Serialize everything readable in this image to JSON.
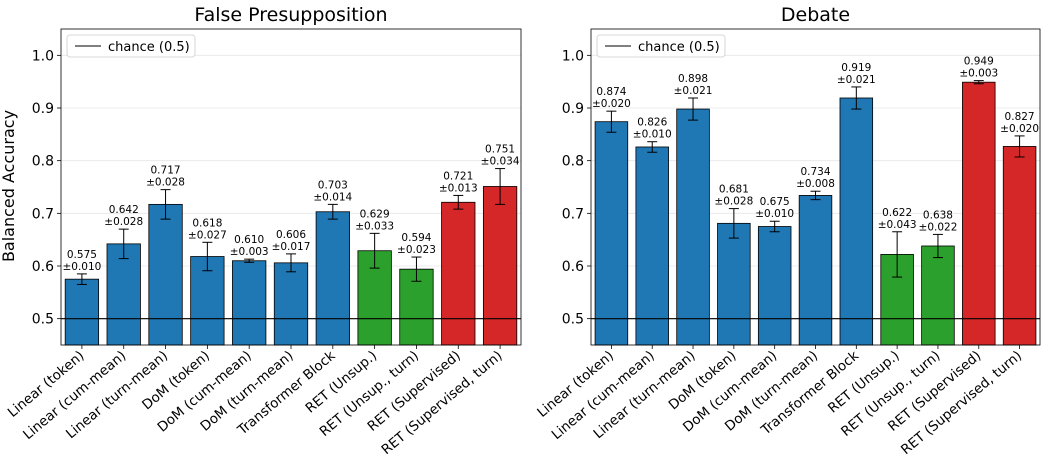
{
  "figure": {
    "ylabel": "Balanced Accuracy"
  },
  "chart_data": [
    {
      "type": "bar",
      "title": "False Presupposition",
      "xlabel": "",
      "ylabel": "Balanced Accuracy",
      "ylim": [
        0.45,
        1.05
      ],
      "yticks": [
        0.5,
        0.6,
        0.7,
        0.8,
        0.9,
        1.0
      ],
      "ytick_labels": [
        "0.5",
        "0.6",
        "0.7",
        "0.8",
        "0.9",
        "1.0"
      ],
      "grid": "horizontal",
      "legend_position": "top-left",
      "reference_line": {
        "y": 0.5,
        "label": "chance (0.5)"
      },
      "categories": [
        "Linear (token)",
        "Linear (cum-mean)",
        "Linear (turn-mean)",
        "DoM (token)",
        "DoM (cum-mean)",
        "DoM (turn-mean)",
        "Transformer Block",
        "RET (Unsup.)",
        "RET (Unsup., turn)",
        "RET (Supervised)",
        "RET (Supervised, turn)"
      ],
      "values": [
        0.575,
        0.642,
        0.717,
        0.618,
        0.61,
        0.606,
        0.703,
        0.629,
        0.594,
        0.721,
        0.751
      ],
      "errors": [
        0.01,
        0.028,
        0.028,
        0.027,
        0.003,
        0.017,
        0.014,
        0.033,
        0.023,
        0.013,
        0.034
      ],
      "value_labels": [
        "0.575",
        "0.642",
        "0.717",
        "0.618",
        "0.610",
        "0.606",
        "0.703",
        "0.629",
        "0.594",
        "0.721",
        "0.751"
      ],
      "error_labels": [
        "±0.010",
        "±0.028",
        "±0.028",
        "±0.027",
        "±0.003",
        "±0.017",
        "±0.014",
        "±0.033",
        "±0.023",
        "±0.013",
        "±0.034"
      ],
      "colors": [
        "#1f77b4",
        "#1f77b4",
        "#1f77b4",
        "#1f77b4",
        "#1f77b4",
        "#1f77b4",
        "#1f77b4",
        "#2ca02c",
        "#2ca02c",
        "#d62728",
        "#d62728"
      ]
    },
    {
      "type": "bar",
      "title": "Debate",
      "xlabel": "",
      "ylabel": "",
      "ylim": [
        0.45,
        1.05
      ],
      "yticks": [
        0.5,
        0.6,
        0.7,
        0.8,
        0.9,
        1.0
      ],
      "ytick_labels": [
        "0.5",
        "0.6",
        "0.7",
        "0.8",
        "0.9",
        "1.0"
      ],
      "grid": "horizontal",
      "legend_position": "top-left",
      "reference_line": {
        "y": 0.5,
        "label": "chance (0.5)"
      },
      "categories": [
        "Linear (token)",
        "Linear (cum-mean)",
        "Linear (turn-mean)",
        "DoM (token)",
        "DoM (cum-mean)",
        "DoM (turn-mean)",
        "Transformer Block",
        "RET (Unsup.)",
        "RET (Unsup., turn)",
        "RET (Supervised)",
        "RET (Supervised, turn)"
      ],
      "values": [
        0.874,
        0.826,
        0.898,
        0.681,
        0.675,
        0.734,
        0.919,
        0.622,
        0.638,
        0.949,
        0.827
      ],
      "errors": [
        0.02,
        0.01,
        0.021,
        0.028,
        0.01,
        0.008,
        0.021,
        0.043,
        0.022,
        0.003,
        0.02
      ],
      "value_labels": [
        "0.874",
        "0.826",
        "0.898",
        "0.681",
        "0.675",
        "0.734",
        "0.919",
        "0.622",
        "0.638",
        "0.949",
        "0.827"
      ],
      "error_labels": [
        "±0.020",
        "±0.010",
        "±0.021",
        "±0.028",
        "±0.010",
        "±0.008",
        "±0.021",
        "±0.043",
        "±0.022",
        "±0.003",
        "±0.020"
      ],
      "colors": [
        "#1f77b4",
        "#1f77b4",
        "#1f77b4",
        "#1f77b4",
        "#1f77b4",
        "#1f77b4",
        "#1f77b4",
        "#2ca02c",
        "#2ca02c",
        "#d62728",
        "#d62728"
      ]
    }
  ],
  "colors": {
    "blue": "#1f77b4",
    "green": "#2ca02c",
    "red": "#d62728",
    "grid": "#e6e6e6"
  }
}
